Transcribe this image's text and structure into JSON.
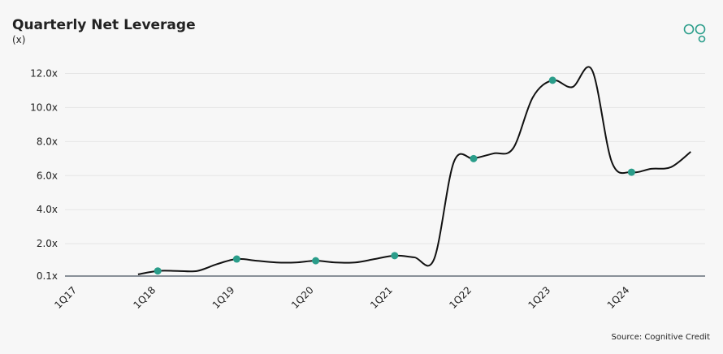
{
  "chart_data": {
    "type": "line",
    "title": "Quarterly Net Leverage",
    "subtitle": "(x)",
    "source": "Source: Cognitive Credit",
    "categories": [
      "1Q17",
      null,
      null,
      null,
      "1Q18",
      null,
      null,
      null,
      "1Q19",
      null,
      null,
      null,
      "1Q20",
      null,
      null,
      null,
      "1Q21",
      null,
      null,
      null,
      "1Q22",
      null,
      null,
      null,
      "1Q23",
      null,
      null,
      null,
      "1Q24",
      null,
      null,
      null
    ],
    "series": [
      {
        "color": "#111111",
        "marker_color": "#2a9d8a",
        "values": [
          null,
          null,
          null,
          0.2,
          0.4,
          0.4,
          0.4,
          0.8,
          1.1,
          1.0,
          0.9,
          0.9,
          1.0,
          0.9,
          0.9,
          1.1,
          1.3,
          1.2,
          1.1,
          6.8,
          7.0,
          7.3,
          7.6,
          10.6,
          11.6,
          11.2,
          12.2,
          6.8,
          6.2,
          6.4,
          6.5,
          7.4
        ]
      }
    ],
    "ylim": [
      0.1,
      12.5
    ],
    "yticks": [
      {
        "value": 0.1,
        "label": "0.1x"
      },
      {
        "value": 2,
        "label": "2.0x"
      },
      {
        "value": 4,
        "label": "4.0x"
      },
      {
        "value": 6,
        "label": "6.0x"
      },
      {
        "value": 8,
        "label": "8.0x"
      },
      {
        "value": 10,
        "label": "10.0x"
      },
      {
        "value": 12,
        "label": "12.0x"
      }
    ],
    "grid": true
  }
}
